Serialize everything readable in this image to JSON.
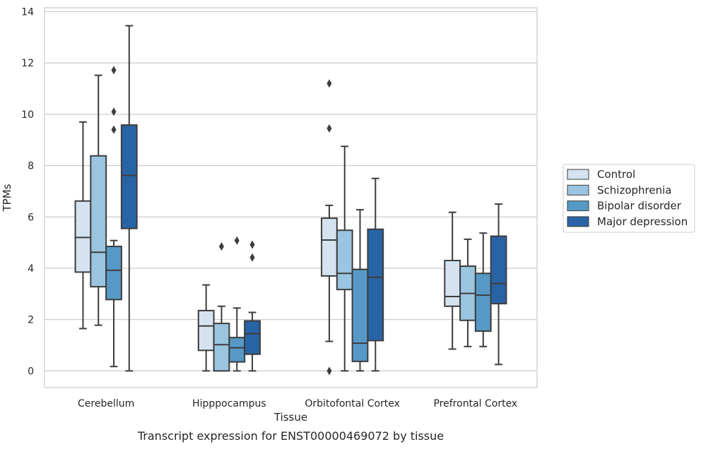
{
  "chart_data": {
    "type": "boxplot",
    "caption": "Transcript expression for ENST00000469072 by tissue",
    "xlabel": "Tissue",
    "ylabel": "TPMs",
    "ylim": [
      -0.65,
      14.15
    ],
    "yticks": [
      0,
      2,
      4,
      6,
      8,
      10,
      12,
      14
    ],
    "grid": true,
    "legend_position": "right",
    "categories": [
      "Cerebellum",
      "Hipppocampus",
      "Orbitofontal Cortex",
      "Prefrontal Cortex"
    ],
    "series": [
      {
        "name": "Control",
        "color": "#d5e3f1",
        "boxes": [
          {
            "whislo": 1.65,
            "q1": 3.85,
            "med": 5.2,
            "q3": 6.62,
            "whishi": 9.7,
            "fliers": []
          },
          {
            "whislo": 0.0,
            "q1": 0.8,
            "med": 1.75,
            "q3": 2.35,
            "whishi": 3.35,
            "fliers": []
          },
          {
            "whislo": 1.15,
            "q1": 3.7,
            "med": 5.1,
            "q3": 5.95,
            "whishi": 6.45,
            "fliers": [
              9.45,
              11.2,
              0.0
            ]
          },
          {
            "whislo": 0.85,
            "q1": 2.52,
            "med": 2.9,
            "q3": 4.3,
            "whishi": 6.18,
            "fliers": []
          }
        ]
      },
      {
        "name": "Schizophrenia",
        "color": "#9ac5e0",
        "boxes": [
          {
            "whislo": 1.78,
            "q1": 3.28,
            "med": 4.62,
            "q3": 8.38,
            "whishi": 11.52,
            "fliers": []
          },
          {
            "whislo": 0.0,
            "q1": 0.0,
            "med": 1.02,
            "q3": 1.85,
            "whishi": 2.52,
            "fliers": [
              4.85
            ]
          },
          {
            "whislo": 0.0,
            "q1": 3.17,
            "med": 3.8,
            "q3": 5.48,
            "whishi": 8.75,
            "fliers": []
          },
          {
            "whislo": 0.95,
            "q1": 1.97,
            "med": 3.02,
            "q3": 4.08,
            "whishi": 5.13,
            "fliers": []
          }
        ]
      },
      {
        "name": "Bipolar disorder",
        "color": "#5699c7",
        "boxes": [
          {
            "whislo": 0.17,
            "q1": 2.78,
            "med": 3.92,
            "q3": 4.85,
            "whishi": 5.08,
            "fliers": [
              9.4,
              10.1,
              11.72
            ]
          },
          {
            "whislo": 0.0,
            "q1": 0.35,
            "med": 0.9,
            "q3": 1.3,
            "whishi": 2.45,
            "fliers": [
              5.08
            ]
          },
          {
            "whislo": 0.0,
            "q1": 0.37,
            "med": 1.08,
            "q3": 3.95,
            "whishi": 6.28,
            "fliers": []
          },
          {
            "whislo": 0.95,
            "q1": 1.55,
            "med": 2.95,
            "q3": 3.8,
            "whishi": 5.37,
            "fliers": []
          }
        ]
      },
      {
        "name": "Major depression",
        "color": "#2863a6",
        "boxes": [
          {
            "whislo": 0.0,
            "q1": 5.55,
            "med": 7.62,
            "q3": 9.58,
            "whishi": 13.45,
            "fliers": []
          },
          {
            "whislo": 0.0,
            "q1": 0.65,
            "med": 1.45,
            "q3": 1.95,
            "whishi": 2.28,
            "fliers": [
              4.42,
              4.92
            ]
          },
          {
            "whislo": 0.0,
            "q1": 1.18,
            "med": 3.65,
            "q3": 5.52,
            "whishi": 7.5,
            "fliers": []
          },
          {
            "whislo": 0.25,
            "q1": 2.62,
            "med": 3.4,
            "q3": 5.25,
            "whishi": 6.5,
            "fliers": []
          }
        ]
      }
    ]
  }
}
